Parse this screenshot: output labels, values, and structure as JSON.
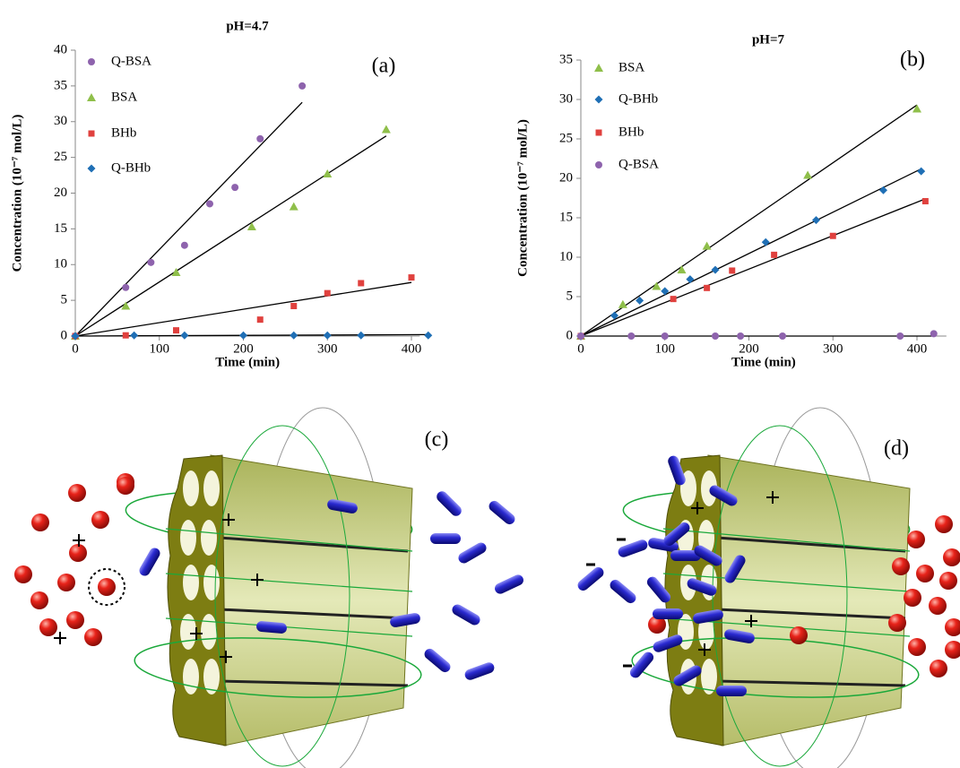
{
  "chart_data": [
    {
      "type": "scatter",
      "title": "pH=4.7",
      "panel_label": "(a)",
      "x_label": "Time (min)",
      "y_label": "Concentration (10⁻⁷ mol/L)",
      "xlim": [
        0,
        410
      ],
      "ylim": [
        0,
        40
      ],
      "xticks": [
        0,
        100,
        200,
        300,
        400
      ],
      "yticks": [
        0,
        5,
        10,
        15,
        20,
        25,
        30,
        35,
        40
      ],
      "series": [
        {
          "name": "Q-BSA",
          "color": "#8e63ad",
          "marker": "circle",
          "x": [
            0,
            60,
            90,
            130,
            160,
            190,
            220,
            270
          ],
          "y": [
            0,
            6.8,
            10.3,
            12.7,
            18.5,
            20.8,
            27.6,
            35
          ],
          "trendline": {
            "x": [
              0,
              270
            ],
            "y": [
              0,
              32.7
            ]
          }
        },
        {
          "name": "BSA",
          "color": "#8fbf4a",
          "marker": "triangle",
          "x": [
            0,
            60,
            120,
            210,
            260,
            300,
            370
          ],
          "y": [
            0,
            4.2,
            8.9,
            15.3,
            18.1,
            22.7,
            28.9
          ],
          "trendline": {
            "x": [
              0,
              370
            ],
            "y": [
              0,
              28
            ]
          }
        },
        {
          "name": "BHb",
          "color": "#e0413e",
          "marker": "square",
          "x": [
            0,
            60,
            120,
            220,
            260,
            300,
            340,
            400
          ],
          "y": [
            0,
            0.1,
            0.8,
            2.3,
            4.2,
            6,
            7.4,
            8.2
          ],
          "trendline": {
            "x": [
              0,
              400
            ],
            "y": [
              0,
              7.5
            ]
          }
        },
        {
          "name": "Q-BHb",
          "color": "#1f6fb5",
          "marker": "diamond",
          "x": [
            0,
            70,
            130,
            200,
            260,
            300,
            340,
            420
          ],
          "y": [
            0,
            0.1,
            0.1,
            0.1,
            0.1,
            0.1,
            0.1,
            0.1
          ],
          "trendline": {
            "x": [
              0,
              420
            ],
            "y": [
              0,
              0.2
            ]
          }
        }
      ]
    },
    {
      "type": "scatter",
      "title": "pH=7",
      "panel_label": "(b)",
      "x_label": "Time (min)",
      "y_label": "Concentration (10⁻⁷ mol/L)",
      "xlim": [
        0,
        435
      ],
      "ylim": [
        0,
        35
      ],
      "xticks": [
        0,
        100,
        200,
        300,
        400
      ],
      "yticks": [
        0,
        5,
        10,
        15,
        20,
        25,
        30,
        35
      ],
      "series": [
        {
          "name": "BSA",
          "color": "#8fbf4a",
          "marker": "triangle",
          "x": [
            0,
            50,
            90,
            120,
            150,
            270,
            400
          ],
          "y": [
            0,
            4,
            6.3,
            8.4,
            11.4,
            20.4,
            28.8
          ],
          "trendline": {
            "x": [
              0,
              400
            ],
            "y": [
              0,
              29.3
            ]
          }
        },
        {
          "name": "Q-BHb",
          "color": "#1f6fb5",
          "marker": "diamond",
          "x": [
            0,
            40,
            70,
            100,
            130,
            160,
            220,
            280,
            360,
            405
          ],
          "y": [
            0,
            2.6,
            4.5,
            5.7,
            7.2,
            8.4,
            11.9,
            14.7,
            18.5,
            20.9
          ],
          "trendline": {
            "x": [
              0,
              405
            ],
            "y": [
              0,
              21.2
            ]
          }
        },
        {
          "name": "BHb",
          "color": "#e0413e",
          "marker": "square",
          "x": [
            0,
            110,
            150,
            180,
            230,
            300,
            410
          ],
          "y": [
            0,
            4.7,
            6.1,
            8.3,
            10.3,
            12.7,
            17.1
          ],
          "trendline": {
            "x": [
              0,
              410
            ],
            "y": [
              0,
              17.4
            ]
          }
        },
        {
          "name": "Q-BSA",
          "color": "#8e63ad",
          "marker": "circle",
          "x": [
            0,
            60,
            100,
            160,
            190,
            240,
            380,
            420
          ],
          "y": [
            0,
            0,
            0,
            0,
            0,
            0,
            0,
            0.3
          ],
          "trendline": {
            "x": [
              0,
              420
            ],
            "y": [
              0,
              0
            ]
          }
        }
      ]
    }
  ],
  "illustrations": [
    {
      "label": "(c)"
    },
    {
      "label": "(d)"
    }
  ]
}
